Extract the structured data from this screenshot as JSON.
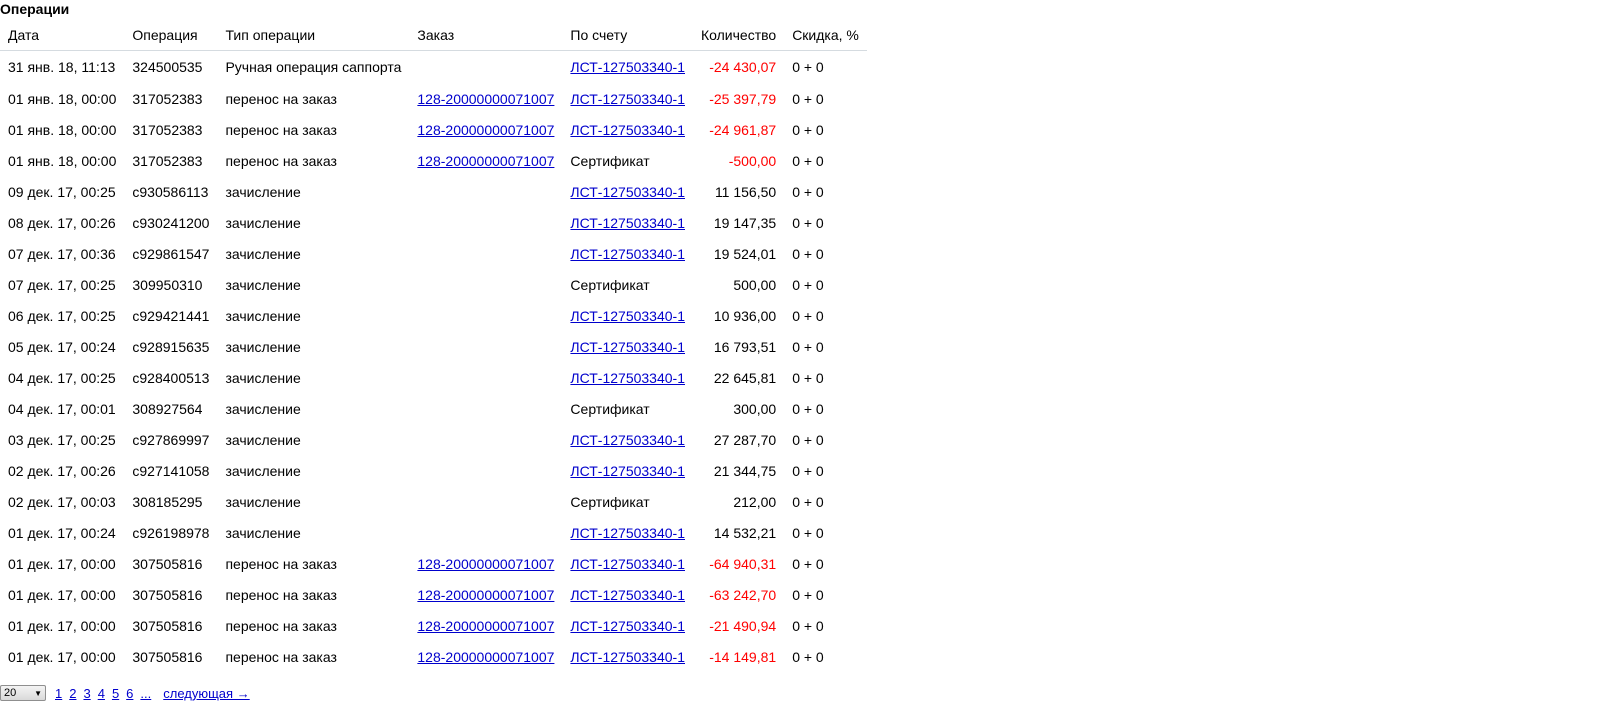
{
  "section_title": "Операции",
  "columns": {
    "date": "Дата",
    "operation": "Операция",
    "type": "Тип операции",
    "order": "Заказ",
    "account": "По счету",
    "quantity": "Количество",
    "discount": "Скидка, %"
  },
  "rows": [
    {
      "date": "31 янв. 18, 11:13",
      "operation": "324500535",
      "type": "Ручная операция саппорта",
      "order": "",
      "account": "ЛСТ-127503340-1",
      "account_link": true,
      "quantity": "-24 430,07",
      "negative": true,
      "discount": "0 + 0"
    },
    {
      "date": "01 янв. 18, 00:00",
      "operation": "317052383",
      "type": "перенос на заказ",
      "order": "128-20000000071007",
      "account": "ЛСТ-127503340-1",
      "account_link": true,
      "quantity": "-25 397,79",
      "negative": true,
      "discount": "0 + 0"
    },
    {
      "date": "01 янв. 18, 00:00",
      "operation": "317052383",
      "type": "перенос на заказ",
      "order": "128-20000000071007",
      "account": "ЛСТ-127503340-1",
      "account_link": true,
      "quantity": "-24 961,87",
      "negative": true,
      "discount": "0 + 0"
    },
    {
      "date": "01 янв. 18, 00:00",
      "operation": "317052383",
      "type": "перенос на заказ",
      "order": "128-20000000071007",
      "account": "Сертификат",
      "account_link": false,
      "quantity": "-500,00",
      "negative": true,
      "discount": "0 + 0"
    },
    {
      "date": "09 дек. 17, 00:25",
      "operation": "c930586113",
      "type": "зачисление",
      "order": "",
      "account": "ЛСТ-127503340-1",
      "account_link": true,
      "quantity": "11 156,50",
      "negative": false,
      "discount": "0 + 0"
    },
    {
      "date": "08 дек. 17, 00:26",
      "operation": "c930241200",
      "type": "зачисление",
      "order": "",
      "account": "ЛСТ-127503340-1",
      "account_link": true,
      "quantity": "19 147,35",
      "negative": false,
      "discount": "0 + 0"
    },
    {
      "date": "07 дек. 17, 00:36",
      "operation": "c929861547",
      "type": "зачисление",
      "order": "",
      "account": "ЛСТ-127503340-1",
      "account_link": true,
      "quantity": "19 524,01",
      "negative": false,
      "discount": "0 + 0"
    },
    {
      "date": "07 дек. 17, 00:25",
      "operation": "309950310",
      "type": "зачисление",
      "order": "",
      "account": "Сертификат",
      "account_link": false,
      "quantity": "500,00",
      "negative": false,
      "discount": "0 + 0"
    },
    {
      "date": "06 дек. 17, 00:25",
      "operation": "c929421441",
      "type": "зачисление",
      "order": "",
      "account": "ЛСТ-127503340-1",
      "account_link": true,
      "quantity": "10 936,00",
      "negative": false,
      "discount": "0 + 0"
    },
    {
      "date": "05 дек. 17, 00:24",
      "operation": "c928915635",
      "type": "зачисление",
      "order": "",
      "account": "ЛСТ-127503340-1",
      "account_link": true,
      "quantity": "16 793,51",
      "negative": false,
      "discount": "0 + 0"
    },
    {
      "date": "04 дек. 17, 00:25",
      "operation": "c928400513",
      "type": "зачисление",
      "order": "",
      "account": "ЛСТ-127503340-1",
      "account_link": true,
      "quantity": "22 645,81",
      "negative": false,
      "discount": "0 + 0"
    },
    {
      "date": "04 дек. 17, 00:01",
      "operation": "308927564",
      "type": "зачисление",
      "order": "",
      "account": "Сертификат",
      "account_link": false,
      "quantity": "300,00",
      "negative": false,
      "discount": "0 + 0"
    },
    {
      "date": "03 дек. 17, 00:25",
      "operation": "c927869997",
      "type": "зачисление",
      "order": "",
      "account": "ЛСТ-127503340-1",
      "account_link": true,
      "quantity": "27 287,70",
      "negative": false,
      "discount": "0 + 0"
    },
    {
      "date": "02 дек. 17, 00:26",
      "operation": "c927141058",
      "type": "зачисление",
      "order": "",
      "account": "ЛСТ-127503340-1",
      "account_link": true,
      "quantity": "21 344,75",
      "negative": false,
      "discount": "0 + 0"
    },
    {
      "date": "02 дек. 17, 00:03",
      "operation": "308185295",
      "type": "зачисление",
      "order": "",
      "account": "Сертификат",
      "account_link": false,
      "quantity": "212,00",
      "negative": false,
      "discount": "0 + 0"
    },
    {
      "date": "01 дек. 17, 00:24",
      "operation": "c926198978",
      "type": "зачисление",
      "order": "",
      "account": "ЛСТ-127503340-1",
      "account_link": true,
      "quantity": "14 532,21",
      "negative": false,
      "discount": "0 + 0"
    },
    {
      "date": "01 дек. 17, 00:00",
      "operation": "307505816",
      "type": "перенос на заказ",
      "order": "128-20000000071007",
      "account": "ЛСТ-127503340-1",
      "account_link": true,
      "quantity": "-64 940,31",
      "negative": true,
      "discount": "0 + 0"
    },
    {
      "date": "01 дек. 17, 00:00",
      "operation": "307505816",
      "type": "перенос на заказ",
      "order": "128-20000000071007",
      "account": "ЛСТ-127503340-1",
      "account_link": true,
      "quantity": "-63 242,70",
      "negative": true,
      "discount": "0 + 0"
    },
    {
      "date": "01 дек. 17, 00:00",
      "operation": "307505816",
      "type": "перенос на заказ",
      "order": "128-20000000071007",
      "account": "ЛСТ-127503340-1",
      "account_link": true,
      "quantity": "-21 490,94",
      "negative": true,
      "discount": "0 + 0"
    },
    {
      "date": "01 дек. 17, 00:00",
      "operation": "307505816",
      "type": "перенос на заказ",
      "order": "128-20000000071007",
      "account": "ЛСТ-127503340-1",
      "account_link": true,
      "quantity": "-14 149,81",
      "negative": true,
      "discount": "0 + 0"
    }
  ],
  "pager": {
    "per_page": "20",
    "pages": [
      "1",
      "2",
      "3",
      "4",
      "5",
      "6",
      "..."
    ],
    "next_label": "следующая →"
  },
  "colors": {
    "link": "#0000cc",
    "negative": "#ff0000",
    "header_border": "#d5dbe0"
  }
}
